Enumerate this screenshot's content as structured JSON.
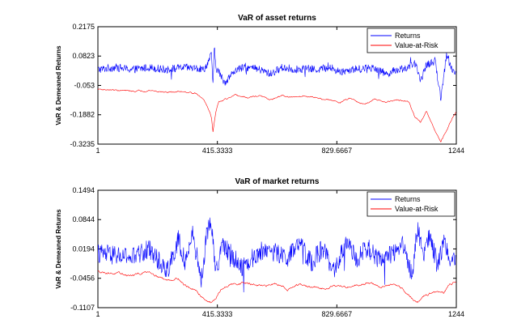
{
  "chart_data": [
    {
      "type": "line",
      "title": "VaR of asset returns",
      "xlabel": "",
      "ylabel": "VaR & Demeaned Returns",
      "xlim": [
        1,
        1244
      ],
      "ylim": [
        -0.3235,
        0.2175
      ],
      "xticks": [
        1,
        415.3333,
        829.6667,
        1244
      ],
      "xtick_labels": [
        "1",
        "415.3333",
        "829.6667",
        "1244"
      ],
      "yticks": [
        -0.3235,
        -0.1882,
        -0.053,
        0.0823,
        0.2175
      ],
      "ytick_labels": [
        "-0.3235",
        "-0.1882",
        "-0.053",
        "0.0823",
        "0.2175"
      ],
      "legend_position": "top-right",
      "series": [
        {
          "name": "Returns",
          "color": "#0000ff",
          "x": [
            1,
            60,
            120,
            180,
            240,
            300,
            340,
            370,
            385,
            395,
            400,
            405,
            410,
            420,
            440,
            480,
            520,
            560,
            600,
            640,
            680,
            720,
            760,
            800,
            840,
            880,
            920,
            960,
            1000,
            1040,
            1080,
            1100,
            1120,
            1140,
            1170,
            1190,
            1210,
            1230,
            1244
          ],
          "values": [
            0.02,
            0.03,
            0.02,
            0.03,
            0.02,
            0.03,
            0.025,
            0.02,
            0.06,
            0.09,
            -0.05,
            0.12,
            0.03,
            0.01,
            -0.04,
            0.02,
            0.03,
            0.02,
            0.0,
            0.03,
            0.02,
            0.025,
            0.02,
            0.03,
            0.01,
            0.02,
            0.025,
            0.03,
            0.0,
            0.02,
            0.03,
            0.05,
            -0.03,
            0.04,
            0.06,
            -0.11,
            0.08,
            0.02,
            0.01
          ]
        },
        {
          "name": "Value-at-Risk",
          "color": "#ff0000",
          "x": [
            1,
            60,
            120,
            180,
            240,
            300,
            340,
            370,
            385,
            395,
            400,
            405,
            410,
            420,
            440,
            480,
            520,
            560,
            600,
            640,
            680,
            720,
            760,
            800,
            840,
            880,
            920,
            960,
            1000,
            1040,
            1080,
            1100,
            1120,
            1140,
            1170,
            1190,
            1210,
            1230,
            1244
          ],
          "values": [
            -0.07,
            -0.075,
            -0.08,
            -0.075,
            -0.085,
            -0.08,
            -0.09,
            -0.12,
            -0.16,
            -0.2,
            -0.27,
            -0.22,
            -0.18,
            -0.13,
            -0.12,
            -0.1,
            -0.11,
            -0.1,
            -0.12,
            -0.1,
            -0.11,
            -0.1,
            -0.11,
            -0.12,
            -0.13,
            -0.11,
            -0.14,
            -0.12,
            -0.13,
            -0.12,
            -0.13,
            -0.2,
            -0.22,
            -0.17,
            -0.26,
            -0.31,
            -0.26,
            -0.2,
            -0.17
          ]
        }
      ]
    },
    {
      "type": "line",
      "title": "VaR of market returns",
      "xlabel": "",
      "ylabel": "VaR & Demeaned Returns",
      "xlim": [
        1,
        1244
      ],
      "ylim": [
        -0.1107,
        0.1494
      ],
      "xticks": [
        1,
        415.3333,
        829.6667,
        1244
      ],
      "xtick_labels": [
        "1",
        "415.3333",
        "829.6667",
        "1244"
      ],
      "yticks": [
        -0.1107,
        -0.0456,
        0.0194,
        0.0844,
        0.1494
      ],
      "ytick_labels": [
        "-0.1107",
        "-0.0456",
        "0.0194",
        "0.0844",
        "0.1494"
      ],
      "legend_position": "top-right",
      "series": [
        {
          "name": "Returns",
          "color": "#0000ff",
          "x": [
            1,
            60,
            120,
            180,
            240,
            280,
            300,
            330,
            360,
            380,
            395,
            410,
            430,
            460,
            500,
            540,
            580,
            620,
            660,
            700,
            740,
            780,
            820,
            860,
            900,
            940,
            980,
            1020,
            1060,
            1090,
            1110,
            1130,
            1150,
            1180,
            1200,
            1220,
            1244
          ],
          "values": [
            0.01,
            0.005,
            0.0,
            0.02,
            -0.03,
            0.04,
            -0.02,
            0.05,
            -0.05,
            0.06,
            0.08,
            -0.04,
            0.03,
            0.01,
            -0.02,
            0.0,
            0.02,
            0.01,
            0.0,
            0.03,
            -0.01,
            0.02,
            -0.03,
            0.03,
            0.0,
            0.02,
            -0.01,
            0.01,
            0.03,
            -0.04,
            0.07,
            0.0,
            0.05,
            -0.02,
            0.04,
            0.0,
            0.005
          ]
        },
        {
          "name": "Value-at-Risk",
          "color": "#ff0000",
          "x": [
            1,
            60,
            120,
            180,
            240,
            280,
            300,
            330,
            360,
            380,
            395,
            410,
            430,
            460,
            500,
            540,
            580,
            620,
            660,
            700,
            740,
            780,
            820,
            860,
            900,
            940,
            980,
            1020,
            1060,
            1090,
            1110,
            1130,
            1150,
            1180,
            1200,
            1220,
            1244
          ],
          "values": [
            -0.03,
            -0.035,
            -0.04,
            -0.03,
            -0.05,
            -0.045,
            -0.06,
            -0.07,
            -0.085,
            -0.095,
            -0.1,
            -0.09,
            -0.07,
            -0.06,
            -0.055,
            -0.06,
            -0.065,
            -0.055,
            -0.07,
            -0.06,
            -0.065,
            -0.07,
            -0.06,
            -0.065,
            -0.06,
            -0.055,
            -0.065,
            -0.06,
            -0.07,
            -0.09,
            -0.1,
            -0.085,
            -0.08,
            -0.075,
            -0.08,
            -0.06,
            -0.05
          ]
        }
      ]
    }
  ]
}
